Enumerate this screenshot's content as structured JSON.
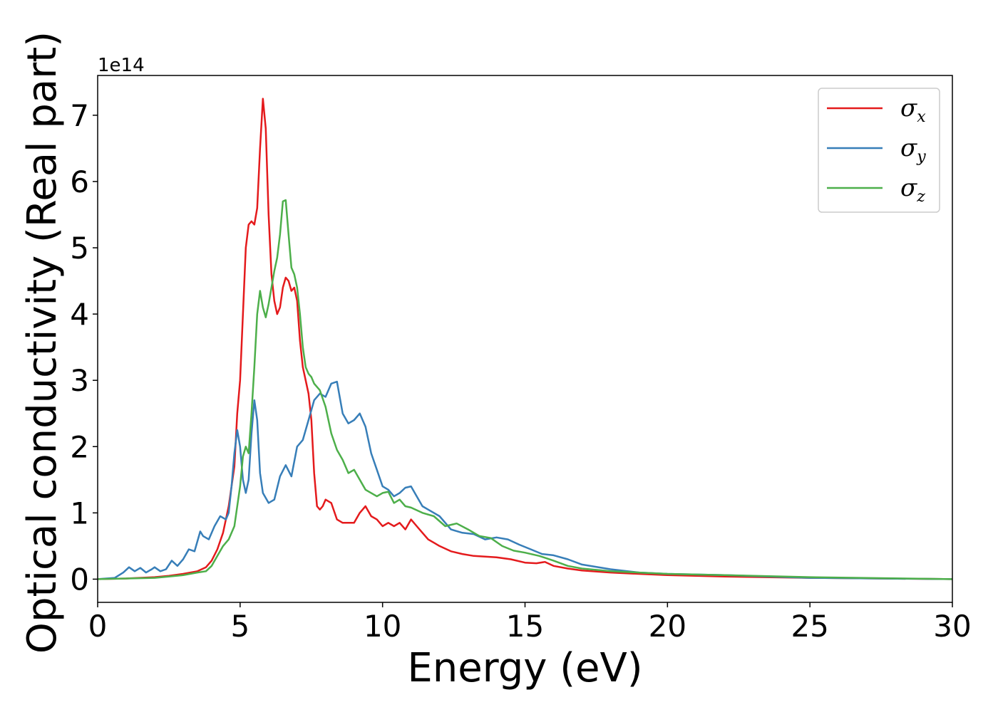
{
  "chart_data": {
    "type": "line",
    "xlabel": "Energy (eV)",
    "ylabel": "Optical conductivity (Real part)",
    "y_offset_text": "1e14",
    "xlim": [
      0,
      30
    ],
    "ylim": [
      -0.35,
      7.6
    ],
    "x_ticks": [
      0,
      5,
      10,
      15,
      20,
      25,
      30
    ],
    "y_ticks": [
      0,
      1,
      2,
      3,
      4,
      5,
      6,
      7
    ],
    "grid": false,
    "legend_position": "top-right",
    "series": [
      {
        "name": "σx",
        "symbol": "σ",
        "subscript": "x",
        "color": "#e41a1c",
        "x": [
          0,
          1,
          2,
          2.5,
          3,
          3.5,
          3.8,
          4.0,
          4.2,
          4.4,
          4.6,
          4.8,
          4.9,
          5.0,
          5.1,
          5.2,
          5.3,
          5.4,
          5.5,
          5.6,
          5.7,
          5.8,
          5.9,
          6.0,
          6.1,
          6.2,
          6.3,
          6.4,
          6.5,
          6.6,
          6.7,
          6.8,
          6.9,
          7.0,
          7.1,
          7.2,
          7.3,
          7.4,
          7.5,
          7.6,
          7.7,
          7.8,
          7.9,
          8.0,
          8.2,
          8.4,
          8.6,
          8.8,
          9.0,
          9.2,
          9.4,
          9.6,
          9.8,
          10.0,
          10.2,
          10.4,
          10.6,
          10.8,
          11.0,
          11.2,
          11.4,
          11.6,
          11.8,
          12.0,
          12.4,
          12.8,
          13.2,
          13.6,
          14.0,
          14.5,
          15.0,
          15.4,
          15.7,
          16.0,
          16.5,
          17.0,
          18.0,
          19.0,
          20.0,
          22.0,
          25.0,
          30.0
        ],
        "y": [
          0.0,
          0.01,
          0.03,
          0.05,
          0.08,
          0.12,
          0.18,
          0.28,
          0.45,
          0.7,
          1.1,
          1.7,
          2.5,
          3.0,
          4.0,
          5.0,
          5.35,
          5.4,
          5.35,
          5.6,
          6.5,
          7.25,
          6.8,
          5.5,
          4.6,
          4.2,
          4.0,
          4.1,
          4.4,
          4.55,
          4.5,
          4.35,
          4.4,
          4.2,
          3.6,
          3.2,
          3.0,
          2.8,
          2.4,
          1.6,
          1.1,
          1.05,
          1.1,
          1.2,
          1.15,
          0.9,
          0.85,
          0.85,
          0.85,
          1.0,
          1.1,
          0.95,
          0.9,
          0.8,
          0.85,
          0.8,
          0.85,
          0.75,
          0.9,
          0.8,
          0.7,
          0.6,
          0.55,
          0.5,
          0.42,
          0.38,
          0.35,
          0.34,
          0.33,
          0.3,
          0.25,
          0.24,
          0.26,
          0.2,
          0.16,
          0.13,
          0.1,
          0.08,
          0.06,
          0.04,
          0.02,
          0.0
        ]
      },
      {
        "name": "σy",
        "symbol": "σ",
        "subscript": "y",
        "color": "#377eb8",
        "x": [
          0,
          0.6,
          0.9,
          1.1,
          1.3,
          1.5,
          1.7,
          1.9,
          2.0,
          2.2,
          2.4,
          2.6,
          2.8,
          3.0,
          3.2,
          3.4,
          3.6,
          3.7,
          3.9,
          4.1,
          4.3,
          4.5,
          4.6,
          4.7,
          4.8,
          4.9,
          5.0,
          5.1,
          5.2,
          5.3,
          5.4,
          5.5,
          5.6,
          5.7,
          5.8,
          6.0,
          6.2,
          6.4,
          6.6,
          6.8,
          7.0,
          7.2,
          7.4,
          7.6,
          7.8,
          8.0,
          8.2,
          8.4,
          8.6,
          8.8,
          9.0,
          9.2,
          9.4,
          9.6,
          9.8,
          10.0,
          10.2,
          10.4,
          10.6,
          10.8,
          11.0,
          11.2,
          11.4,
          11.6,
          11.8,
          12.0,
          12.4,
          12.8,
          13.2,
          13.6,
          14.0,
          14.4,
          14.8,
          15.2,
          15.6,
          16.0,
          16.5,
          17.0,
          18.0,
          19.0,
          20.0,
          22.0,
          25.0,
          30.0
        ],
        "y": [
          0.0,
          0.02,
          0.1,
          0.18,
          0.12,
          0.17,
          0.1,
          0.15,
          0.18,
          0.12,
          0.15,
          0.28,
          0.2,
          0.3,
          0.45,
          0.42,
          0.72,
          0.65,
          0.6,
          0.8,
          0.95,
          0.9,
          1.0,
          1.4,
          1.9,
          2.25,
          2.0,
          1.5,
          1.3,
          1.5,
          2.2,
          2.7,
          2.4,
          1.6,
          1.3,
          1.15,
          1.2,
          1.55,
          1.72,
          1.55,
          2.0,
          2.1,
          2.4,
          2.7,
          2.8,
          2.75,
          2.95,
          2.98,
          2.5,
          2.35,
          2.4,
          2.5,
          2.3,
          1.9,
          1.65,
          1.4,
          1.35,
          1.25,
          1.3,
          1.38,
          1.4,
          1.25,
          1.1,
          1.05,
          1.0,
          0.95,
          0.75,
          0.7,
          0.68,
          0.6,
          0.63,
          0.6,
          0.52,
          0.45,
          0.38,
          0.36,
          0.3,
          0.22,
          0.15,
          0.1,
          0.08,
          0.06,
          0.02,
          0.0
        ]
      },
      {
        "name": "σz",
        "symbol": "σ",
        "subscript": "z",
        "color": "#4daf4a",
        "x": [
          0,
          1,
          2,
          2.5,
          3,
          3.5,
          3.8,
          4.0,
          4.2,
          4.4,
          4.6,
          4.8,
          5.0,
          5.1,
          5.2,
          5.3,
          5.4,
          5.5,
          5.6,
          5.7,
          5.8,
          5.9,
          6.0,
          6.1,
          6.2,
          6.3,
          6.4,
          6.5,
          6.6,
          6.7,
          6.8,
          6.9,
          7.0,
          7.1,
          7.2,
          7.3,
          7.4,
          7.5,
          7.6,
          7.8,
          8.0,
          8.2,
          8.4,
          8.6,
          8.8,
          9.0,
          9.2,
          9.4,
          9.6,
          9.8,
          10.0,
          10.2,
          10.4,
          10.6,
          10.8,
          11.0,
          11.4,
          11.8,
          12.2,
          12.6,
          13.0,
          13.4,
          13.8,
          14.2,
          14.6,
          15.0,
          15.5,
          16.0,
          16.5,
          17.0,
          18.0,
          19.0,
          20.0,
          22.0,
          25.0,
          30.0
        ],
        "y": [
          0.0,
          0.01,
          0.02,
          0.04,
          0.06,
          0.1,
          0.12,
          0.2,
          0.35,
          0.5,
          0.6,
          0.8,
          1.4,
          1.85,
          2.0,
          1.9,
          2.5,
          3.2,
          4.0,
          4.35,
          4.1,
          3.95,
          4.15,
          4.4,
          4.65,
          4.85,
          5.2,
          5.7,
          5.72,
          5.2,
          4.7,
          4.6,
          4.4,
          4.0,
          3.5,
          3.2,
          3.1,
          3.05,
          2.95,
          2.85,
          2.6,
          2.2,
          1.95,
          1.8,
          1.6,
          1.65,
          1.5,
          1.35,
          1.3,
          1.25,
          1.3,
          1.32,
          1.15,
          1.2,
          1.1,
          1.08,
          1.0,
          0.95,
          0.8,
          0.84,
          0.75,
          0.65,
          0.62,
          0.5,
          0.43,
          0.4,
          0.35,
          0.28,
          0.2,
          0.16,
          0.12,
          0.1,
          0.08,
          0.06,
          0.03,
          0.0
        ]
      }
    ]
  }
}
